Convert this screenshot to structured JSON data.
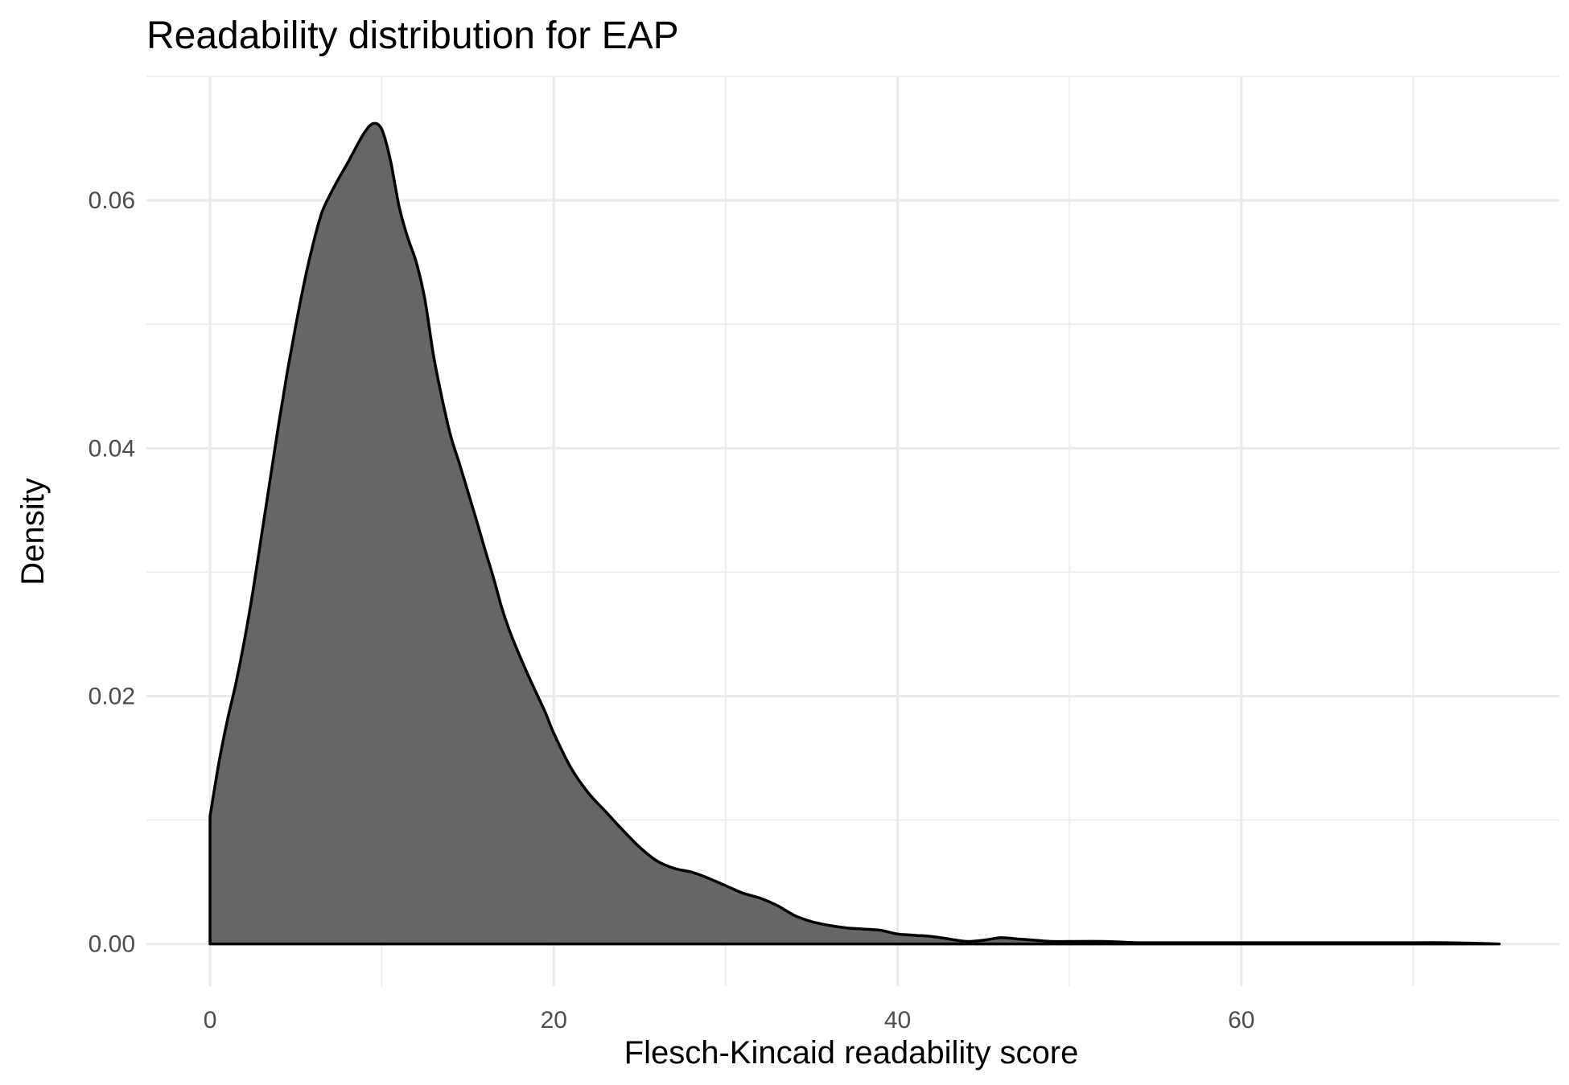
{
  "chart_data": {
    "type": "area",
    "title": "Readability distribution for EAP",
    "xlabel": "Flesch-Kincaid readability score",
    "ylabel": "Density",
    "xlim": [
      -3.7,
      78.5
    ],
    "ylim": [
      -0.0034,
      0.07
    ],
    "xticks": [
      0,
      20,
      40,
      60
    ],
    "xtick_labels": [
      "0",
      "20",
      "40",
      "60"
    ],
    "yticks": [
      0.0,
      0.02,
      0.04,
      0.06
    ],
    "ytick_labels": [
      "0.00",
      "0.02",
      "0.04",
      "0.06"
    ],
    "grid": true,
    "fill_color": "#666666",
    "line_color": "#000000",
    "series": [
      {
        "x": [
          0,
          0.5,
          1,
          1.5,
          2,
          2.5,
          3,
          3.5,
          4,
          4.5,
          5,
          5.5,
          6,
          6.5,
          7,
          7.5,
          8,
          8.5,
          9,
          9.5,
          10,
          10.5,
          11,
          11.5,
          12,
          12.5,
          13,
          13.5,
          14,
          14.5,
          15,
          15.5,
          16,
          16.5,
          17,
          17.5,
          18,
          18.5,
          19,
          19.5,
          20,
          21,
          22,
          23,
          24,
          25,
          26,
          27,
          28,
          29,
          30,
          31,
          32,
          33,
          34,
          35,
          36,
          37,
          38,
          39,
          40,
          41,
          42,
          43,
          44,
          45,
          46,
          47,
          48,
          49,
          50,
          52,
          54,
          56,
          58,
          60,
          62,
          64,
          66,
          68,
          70,
          72,
          75
        ],
        "y": [
          0.0103,
          0.0145,
          0.018,
          0.021,
          0.0245,
          0.0285,
          0.033,
          0.0375,
          0.042,
          0.0462,
          0.05,
          0.0535,
          0.0565,
          0.059,
          0.0605,
          0.0618,
          0.063,
          0.0643,
          0.0655,
          0.0662,
          0.0657,
          0.0632,
          0.0595,
          0.057,
          0.055,
          0.052,
          0.0475,
          0.044,
          0.041,
          0.0388,
          0.0365,
          0.0342,
          0.0318,
          0.0295,
          0.027,
          0.025,
          0.0233,
          0.0217,
          0.0202,
          0.0187,
          0.017,
          0.0142,
          0.0122,
          0.0107,
          0.0092,
          0.0078,
          0.0067,
          0.0061,
          0.0058,
          0.0053,
          0.0047,
          0.0041,
          0.0037,
          0.0031,
          0.0023,
          0.0018,
          0.0015,
          0.0013,
          0.0012,
          0.0011,
          0.0008,
          0.0007,
          0.0006,
          0.0004,
          0.0002,
          0.0003,
          0.0005,
          0.0004,
          0.0003,
          0.0002,
          0.0002,
          0.0002,
          0.0001,
          0.0001,
          0.0001,
          0.0001,
          0.0001,
          0.0001,
          0.0001,
          0.0001,
          0.0001,
          0.0001,
          0.0
        ]
      }
    ]
  }
}
